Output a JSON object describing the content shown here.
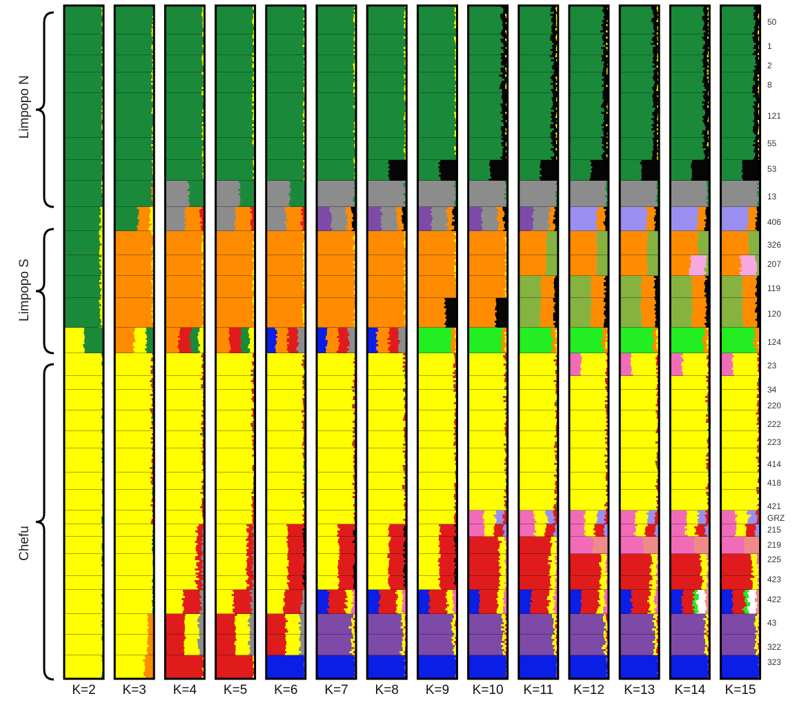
{
  "chart_data": {
    "type": "bar",
    "description_type": "structure admixture plot",
    "k_values": [
      "K=2",
      "K=3",
      "K=4",
      "K=5",
      "K=6",
      "K=7",
      "K=8",
      "K=9",
      "K=10",
      "K=11",
      "K=12",
      "K=13",
      "K=14",
      "K=15"
    ],
    "regions": [
      {
        "name": "Limpopo N",
        "populations": [
          "50",
          "1",
          "2",
          "8",
          "121",
          "55",
          "53",
          "13"
        ]
      },
      {
        "name": "Limpopo S",
        "populations": [
          "406",
          "326",
          "207",
          "119",
          "120",
          "124"
        ]
      },
      {
        "name": "Chefu",
        "populations": [
          "23",
          "34",
          "220",
          "222",
          "223",
          "414",
          "418",
          "421",
          "GRZ",
          "215",
          "219",
          "225",
          "423",
          "422",
          "43",
          "322",
          "323"
        ]
      }
    ],
    "populations": [
      "50",
      "1",
      "2",
      "8",
      "121",
      "55",
      "53",
      "13",
      "406",
      "326",
      "207",
      "119",
      "120",
      "124",
      "23",
      "34",
      "220",
      "222",
      "223",
      "414",
      "418",
      "421",
      "GRZ",
      "215",
      "219",
      "225",
      "423",
      "422",
      "43",
      "322",
      "323"
    ],
    "cluster_colors": {
      "green": "#1a8a3a",
      "yellow": "#ffff00",
      "orange": "#ff8c00",
      "red": "#e01b1b",
      "gray": "#8c8c8c",
      "blue": "#0a1ee6",
      "purple": "#7e4aa8",
      "black": "#050505",
      "olive": "#86b340",
      "lime": "#22ee22",
      "pink": "#f26bb8",
      "lavender": "#9a8ff0",
      "salmon": "#f08a8a",
      "lightpink": "#f7a8e0",
      "white": "#ffffff"
    }
  }
}
